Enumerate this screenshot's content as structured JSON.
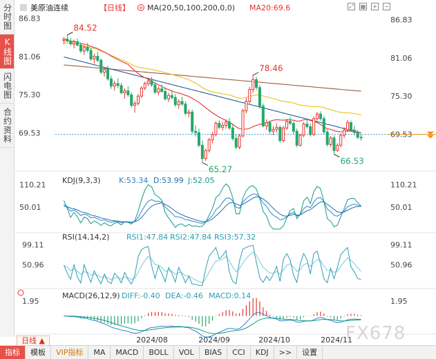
{
  "sidebar": {
    "tabs": [
      {
        "label": "分时图",
        "active": false
      },
      {
        "label": "K线图",
        "active": true
      },
      {
        "label": "闪电图",
        "active": false
      },
      {
        "label": "合约资料",
        "active": false
      }
    ]
  },
  "header": {
    "symbol": "美原油连续",
    "period_tag": "【日线】",
    "ma_label": "MA(20,50,100,200,0,0)",
    "ma20_label": "MA20:69.6"
  },
  "bottom": {
    "period_tab": "日线 ▲",
    "tabs": [
      "指标",
      "模板",
      "VIP指标",
      "MA",
      "MACD",
      "BOLL",
      "VOL",
      "BIAS",
      "CCI",
      "KDJ",
      ">>",
      "设置"
    ],
    "active_index": 0,
    "vip_index": 2
  },
  "watermark": "FX678",
  "chart_data": {
    "type": "candlestick",
    "x_labels": [
      "2024/08",
      "2024/09",
      "2024/10",
      "2024/11"
    ],
    "price_axis": {
      "ticks": [
        86.83,
        81.06,
        75.3,
        69.53
      ],
      "tick_labels": [
        "86.83",
        "81.06",
        "75.30",
        "69.53"
      ],
      "ylim": [
        64.5,
        87.5
      ]
    },
    "current_price": 69.53,
    "annotations": {
      "high": "84.52",
      "low": "65.27",
      "mid_high": "78.46",
      "recent_low": "66.53"
    },
    "ohlc_approx": [
      [
        83.7,
        84.2,
        83.1,
        83.9
      ],
      [
        83.9,
        84.52,
        83.4,
        83.6
      ],
      [
        83.6,
        84.1,
        82.9,
        83.2
      ],
      [
        83.2,
        83.8,
        82.5,
        83.5
      ],
      [
        83.5,
        84.0,
        82.8,
        83.0
      ],
      [
        83.0,
        83.4,
        81.8,
        82.1
      ],
      [
        82.1,
        83.0,
        81.5,
        82.7
      ],
      [
        82.7,
        83.3,
        81.9,
        82.2
      ],
      [
        82.2,
        82.6,
        80.6,
        80.9
      ],
      [
        80.9,
        81.7,
        80.2,
        81.3
      ],
      [
        81.3,
        82.0,
        80.4,
        80.7
      ],
      [
        80.7,
        81.0,
        78.6,
        78.9
      ],
      [
        78.9,
        79.7,
        78.2,
        79.3
      ],
      [
        79.3,
        79.9,
        77.6,
        77.9
      ],
      [
        77.9,
        78.4,
        76.4,
        76.8
      ],
      [
        76.8,
        77.6,
        76.1,
        77.2
      ],
      [
        77.2,
        78.0,
        76.5,
        76.9
      ],
      [
        76.9,
        77.3,
        75.6,
        75.8
      ],
      [
        75.8,
        76.5,
        74.9,
        76.1
      ],
      [
        76.1,
        76.8,
        75.2,
        75.5
      ],
      [
        75.5,
        75.9,
        73.6,
        73.9
      ],
      [
        73.9,
        74.6,
        72.8,
        74.2
      ],
      [
        74.2,
        75.6,
        73.9,
        75.3
      ],
      [
        75.3,
        76.8,
        75.0,
        76.5
      ],
      [
        76.5,
        77.5,
        76.2,
        77.2
      ],
      [
        77.2,
        78.1,
        76.8,
        77.6
      ],
      [
        77.6,
        78.2,
        76.7,
        77.0
      ],
      [
        77.0,
        77.4,
        75.6,
        75.9
      ],
      [
        75.9,
        76.8,
        75.4,
        76.4
      ],
      [
        76.4,
        77.1,
        75.8,
        76.0
      ],
      [
        76.0,
        76.6,
        74.6,
        74.9
      ],
      [
        74.9,
        75.8,
        74.4,
        75.4
      ],
      [
        75.4,
        76.1,
        74.8,
        75.1
      ],
      [
        75.1,
        75.6,
        73.7,
        74.0
      ],
      [
        74.0,
        74.8,
        73.4,
        74.5
      ],
      [
        74.5,
        75.2,
        73.8,
        74.1
      ],
      [
        74.1,
        74.5,
        72.4,
        72.7
      ],
      [
        72.7,
        73.3,
        72.1,
        72.9
      ],
      [
        72.9,
        73.3,
        69.6,
        70.0
      ],
      [
        70.0,
        70.9,
        69.2,
        69.8
      ],
      [
        69.8,
        70.4,
        67.6,
        67.9
      ],
      [
        67.9,
        68.6,
        65.27,
        65.9
      ],
      [
        65.9,
        67.4,
        65.5,
        67.1
      ],
      [
        67.1,
        69.0,
        66.8,
        68.7
      ],
      [
        68.7,
        69.9,
        68.2,
        69.5
      ],
      [
        69.5,
        71.5,
        69.2,
        71.2
      ],
      [
        71.2,
        71.7,
        70.3,
        70.6
      ],
      [
        70.6,
        71.4,
        70.1,
        70.9
      ],
      [
        70.9,
        71.8,
        70.4,
        71.4
      ],
      [
        71.4,
        72.0,
        70.2,
        70.5
      ],
      [
        70.5,
        71.0,
        68.6,
        68.9
      ],
      [
        68.9,
        69.6,
        67.3,
        67.6
      ],
      [
        67.6,
        69.6,
        67.3,
        69.3
      ],
      [
        69.3,
        73.4,
        69.1,
        73.1
      ],
      [
        73.1,
        75.0,
        72.7,
        74.5
      ],
      [
        74.5,
        76.7,
        74.2,
        76.3
      ],
      [
        76.3,
        78.46,
        75.8,
        77.8
      ],
      [
        77.8,
        78.2,
        76.2,
        76.6
      ],
      [
        76.6,
        77.0,
        73.4,
        73.8
      ],
      [
        73.8,
        74.2,
        70.6,
        70.8
      ],
      [
        70.8,
        71.8,
        70.2,
        71.3
      ],
      [
        71.3,
        71.6,
        69.6,
        70.0
      ],
      [
        70.0,
        70.8,
        69.4,
        70.3
      ],
      [
        70.3,
        71.2,
        69.8,
        70.6
      ],
      [
        70.6,
        70.9,
        68.3,
        68.6
      ],
      [
        68.6,
        70.8,
        68.3,
        70.5
      ],
      [
        70.5,
        71.9,
        70.2,
        71.5
      ],
      [
        71.5,
        72.2,
        70.9,
        71.2
      ],
      [
        71.2,
        71.5,
        69.6,
        70.0
      ],
      [
        70.0,
        70.4,
        67.6,
        67.9
      ],
      [
        67.9,
        69.6,
        67.7,
        69.4
      ],
      [
        69.4,
        71.4,
        69.1,
        71.1
      ],
      [
        71.1,
        71.8,
        70.4,
        70.7
      ],
      [
        70.7,
        71.2,
        69.2,
        69.5
      ],
      [
        69.5,
        72.2,
        69.3,
        71.9
      ],
      [
        71.9,
        72.9,
        71.6,
        72.6
      ],
      [
        72.6,
        73.0,
        71.6,
        71.9
      ],
      [
        71.9,
        72.3,
        69.6,
        69.9
      ],
      [
        69.9,
        70.3,
        67.7,
        68.0
      ],
      [
        68.0,
        69.3,
        67.6,
        69.0
      ],
      [
        69.0,
        69.4,
        66.53,
        67.1
      ],
      [
        67.1,
        68.2,
        66.9,
        67.9
      ],
      [
        67.9,
        69.7,
        67.6,
        69.4
      ],
      [
        69.4,
        70.6,
        69.0,
        70.2
      ],
      [
        70.2,
        71.7,
        69.9,
        71.3
      ],
      [
        71.3,
        71.6,
        69.9,
        70.2
      ],
      [
        70.2,
        70.8,
        69.4,
        69.8
      ],
      [
        69.8,
        70.2,
        68.8,
        69.1
      ],
      [
        69.1,
        69.6,
        68.6,
        69.0
      ]
    ],
    "indicators": {
      "kdj": {
        "label": "KDJ(9,3,3)",
        "k": "K:53.34",
        "d": "D:53.99",
        "j": "J:52.05",
        "ticks": [
          "110.21",
          "50.01"
        ],
        "ylim": [
          -10,
          120
        ]
      },
      "rsi": {
        "label": "RSI(14,14,2)",
        "rsi1": "RSI1:47.84",
        "rsi2": "RSI2:47.84",
        "rsi3": "RSI3:57.32",
        "ticks": [
          "99.11",
          "50.96"
        ],
        "ylim": [
          0,
          110
        ]
      },
      "macd": {
        "label": "MACD(26,12,9)",
        "diff": "DIFF:-0.40",
        "dea": "DEA:-0.46",
        "macd": "MACD:0.14",
        "ticks": [
          "1.95"
        ],
        "ylim": [
          -2.2,
          2.5
        ]
      }
    }
  },
  "colors": {
    "up": "#e8332b",
    "down": "#25a86b",
    "ma20": "#e8332b",
    "ma50": "#e8c21c",
    "ma100": "#1d5c9a",
    "ma200": "#9b5b3f",
    "kdj_k": "#2b83c7",
    "kdj_d": "#1f6fa8",
    "kdj_j": "#14998a",
    "rsi": "#2a9fb5",
    "label_high": "#e8332b",
    "label_low": "#25a86b"
  }
}
